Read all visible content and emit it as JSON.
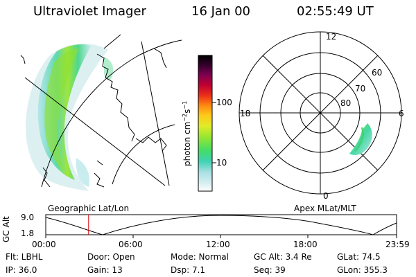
{
  "header": {
    "title": "Ultraviolet Imager",
    "date": "16 Jan 00",
    "time": "02:55:49 UT"
  },
  "colorbar": {
    "unit_prefix": "photon cm",
    "unit_exp1": "−2",
    "unit_s": "s",
    "unit_exp2": "−1",
    "tick_100": "100",
    "tick_10": "10"
  },
  "polar_plot": {
    "mlt_labels": [
      "12",
      "18",
      "6",
      "0"
    ],
    "lat_labels": [
      "60",
      "70",
      "80"
    ]
  },
  "timeline": {
    "left_label": "Geographic Lat/Lon",
    "right_label": "Apex MLat/MLT",
    "axis_title": "GC Alt",
    "y_max": "9.0",
    "y_min": "1.8",
    "x_ticks": [
      "00:00",
      "06:00",
      "12:00",
      "18:00",
      "23:59"
    ],
    "current_time_hours": 2.93
  },
  "info": {
    "flt": "Flt: LBHL",
    "door": "Door: Open",
    "mode": "Mode: Normal",
    "gc_alt": "GC Alt: 3.4 Re",
    "glat": "GLat:   74.5",
    "ip": "IP: 36.0",
    "gain": "Gain: 13",
    "dsp": "Dsp:     7.1",
    "seq": "Seq: 39",
    "glon": "GLon: 355.3"
  },
  "colors": {
    "marker": "#dd0000",
    "line": "#000000"
  }
}
